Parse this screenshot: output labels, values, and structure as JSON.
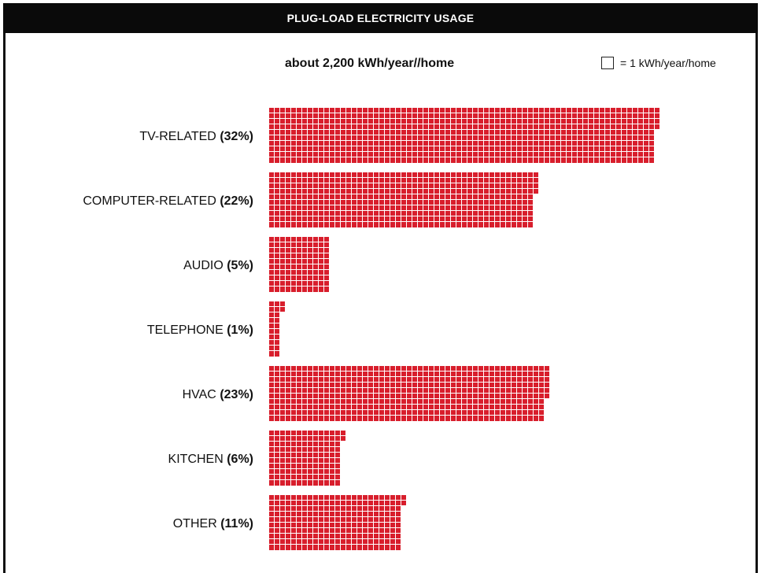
{
  "header": {
    "title": "PLUG-LOAD ELECTRICITY USAGE"
  },
  "subtitle": "about 2,200 kWh/year//home",
  "legend": {
    "label": "= 1 kWh/year/home"
  },
  "colors": {
    "bar": "#d81e2c",
    "grid": "#ffffff",
    "title_bg": "#0a0a0a"
  },
  "chart_data": {
    "type": "bar",
    "orientation": "horizontal",
    "unit": "1 kWh/year/home per square",
    "categories": [
      "TV-RELATED",
      "COMPUTER-RELATED",
      "AUDIO",
      "TELEPHONE",
      "HVAC",
      "KITCHEN",
      "OTHER"
    ],
    "percent_labels": [
      "(32%)",
      "(22%)",
      "(5%)",
      "(1%)",
      "(23%)",
      "(6%)",
      "(11%)"
    ],
    "values": [
      704,
      484,
      110,
      22,
      506,
      132,
      242
    ]
  }
}
